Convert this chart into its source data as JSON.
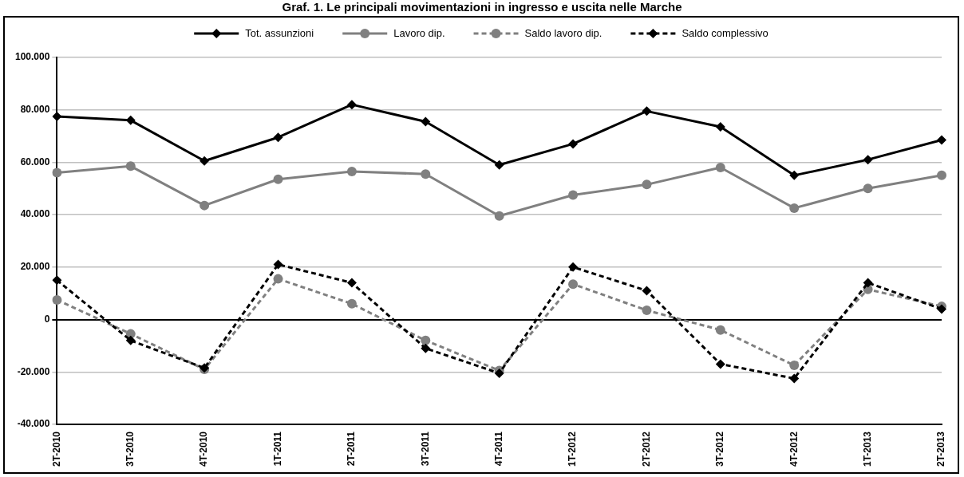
{
  "chart_data": {
    "type": "line",
    "title": "Graf. 1. Le principali movimentazioni in ingresso e uscita nelle Marche",
    "categories": [
      "2T-2010",
      "3T-2010",
      "4T-2010",
      "1T-2011",
      "2T-2011",
      "3T-2011",
      "4T-2011",
      "1T-2012",
      "2T-2012",
      "3T-2012",
      "4T-2012",
      "1T-2013",
      "2T-2013"
    ],
    "series": [
      {
        "name": "Tot. assunzioni",
        "color": "#000000",
        "marker": "diamond",
        "line_style": "solid",
        "values": [
          77500,
          76000,
          60500,
          69500,
          82000,
          75500,
          59000,
          67000,
          79500,
          73500,
          55000,
          61000,
          68500
        ]
      },
      {
        "name": "Lavoro dip.",
        "color": "#808080",
        "marker": "circle",
        "line_style": "solid",
        "values": [
          56000,
          58500,
          43500,
          53500,
          56500,
          55500,
          39500,
          47500,
          51500,
          58000,
          42500,
          50000,
          55000
        ]
      },
      {
        "name": "Saldo lavoro dip.",
        "color": "#808080",
        "marker": "circle",
        "line_style": "dashed",
        "values": [
          7500,
          -5500,
          -19000,
          15500,
          6000,
          -8000,
          -19500,
          13500,
          3500,
          -4000,
          -17500,
          11500,
          5000
        ]
      },
      {
        "name": "Saldo complessivo",
        "color": "#000000",
        "marker": "diamond",
        "line_style": "dashed",
        "values": [
          15000,
          -8000,
          -18500,
          21000,
          14000,
          -11000,
          -20500,
          20000,
          11000,
          -17000,
          -22500,
          14000,
          4000
        ]
      }
    ],
    "ylim": [
      -40000,
      100000
    ],
    "yticks": [
      {
        "value": -40000,
        "label": "-40.000"
      },
      {
        "value": -20000,
        "label": "-20.000"
      },
      0,
      {
        "value": 20000,
        "label": "20.000"
      },
      {
        "value": 40000,
        "label": "40.000"
      },
      {
        "value": 60000,
        "label": "60.000"
      },
      {
        "value": 80000,
        "label": "80.000"
      },
      {
        "value": 100000,
        "label": "100.000"
      }
    ],
    "grid": "y",
    "legend": "top"
  }
}
